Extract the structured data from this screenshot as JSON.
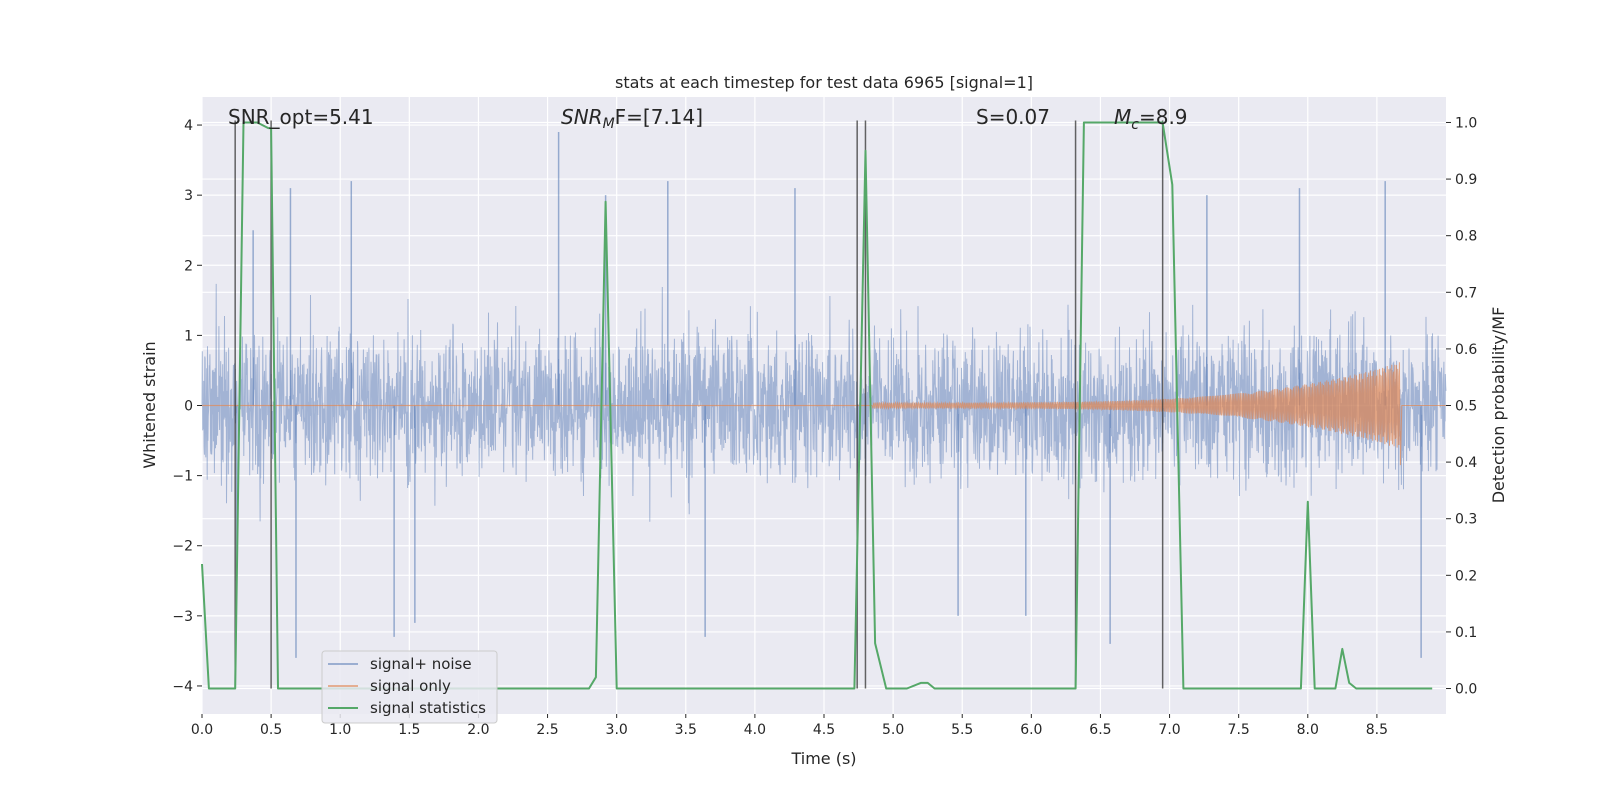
{
  "chart_data": {
    "type": "line",
    "title": "stats at each timestep for test data 6965 [signal=1]",
    "xlabel": "Time (s)",
    "ylabel_left": "Whitened strain",
    "ylabel_right": "Detection probability/MF",
    "xlim": [
      0.0,
      9.0
    ],
    "ylim_left": [
      -4.4,
      4.4
    ],
    "ylim_right": [
      -0.045,
      1.045
    ],
    "x_ticks": [
      0.0,
      0.5,
      1.0,
      1.5,
      2.0,
      2.5,
      3.0,
      3.5,
      4.0,
      4.5,
      5.0,
      5.5,
      6.0,
      6.5,
      7.0,
      7.5,
      8.0,
      8.5
    ],
    "x_tick_labels": [
      "0.0",
      "0.5",
      "1.0",
      "1.5",
      "2.0",
      "2.5",
      "3.0",
      "3.5",
      "4.0",
      "4.5",
      "5.0",
      "5.5",
      "6.0",
      "6.5",
      "7.0",
      "7.5",
      "8.0",
      "8.5"
    ],
    "y_left_ticks": [
      -4,
      -3,
      -2,
      -1,
      0,
      1,
      2,
      3,
      4
    ],
    "y_left_tick_labels": [
      "−4",
      "−3",
      "−2",
      "−1",
      "0",
      "1",
      "2",
      "3",
      "4"
    ],
    "y_right_ticks": [
      0.0,
      0.1,
      0.2,
      0.3,
      0.4,
      0.5,
      0.6,
      0.7,
      0.8,
      0.9,
      1.0
    ],
    "y_right_tick_labels": [
      "0.0",
      "0.1",
      "0.2",
      "0.3",
      "0.4",
      "0.5",
      "0.6",
      "0.7",
      "0.8",
      "0.9",
      "1.0"
    ],
    "grid": true,
    "legend_position": "lower-left",
    "annotations": [
      "SNR_opt=5.41",
      "SNR",
      "M",
      "F=[7.14]",
      "S=0.07",
      "M",
      "c",
      "=8.9"
    ],
    "vertical_lines": [
      0.24,
      0.5,
      4.74,
      4.8,
      6.32,
      6.95
    ],
    "series": [
      {
        "name": "signal+ noise",
        "axis": "left",
        "color": "#4c72b0",
        "style": "dense-noise",
        "x_range": [
          0.0,
          9.0
        ],
        "typical_envelope": [
          -1.6,
          1.6
        ],
        "extremes": [
          {
            "x": 0.25,
            "y": -2.5
          },
          {
            "x": 0.37,
            "y": 2.5
          },
          {
            "x": 0.64,
            "y": 3.1
          },
          {
            "x": 0.68,
            "y": -3.6
          },
          {
            "x": 1.08,
            "y": 3.2
          },
          {
            "x": 1.39,
            "y": -3.3
          },
          {
            "x": 1.54,
            "y": -3.1
          },
          {
            "x": 2.58,
            "y": 3.9
          },
          {
            "x": 2.92,
            "y": 3.0
          },
          {
            "x": 3.37,
            "y": 3.2
          },
          {
            "x": 3.64,
            "y": -3.3
          },
          {
            "x": 4.29,
            "y": 3.1
          },
          {
            "x": 5.47,
            "y": -3.0
          },
          {
            "x": 5.96,
            "y": -3.0
          },
          {
            "x": 6.57,
            "y": -3.4
          },
          {
            "x": 7.27,
            "y": 3.0
          },
          {
            "x": 7.94,
            "y": 3.1
          },
          {
            "x": 8.56,
            "y": 3.2
          },
          {
            "x": 8.82,
            "y": -3.6
          }
        ]
      },
      {
        "name": "signal only",
        "axis": "left",
        "color": "#dd8452",
        "style": "chirp",
        "x_start": 4.85,
        "x_end": 8.67,
        "amp_start": 0.04,
        "amp_end": 0.62
      },
      {
        "name": "signal statistics",
        "axis": "right",
        "color": "#55a868",
        "x": [
          0.0,
          0.05,
          0.1,
          0.2,
          0.24,
          0.3,
          0.4,
          0.48,
          0.5,
          0.55,
          0.6,
          0.7,
          0.8,
          1.0,
          1.5,
          2.0,
          2.5,
          2.8,
          2.85,
          2.92,
          3.0,
          3.1,
          3.5,
          4.0,
          4.5,
          4.68,
          4.72,
          4.8,
          4.87,
          4.95,
          5.1,
          5.2,
          5.25,
          5.3,
          5.5,
          6.0,
          6.3,
          6.32,
          6.38,
          6.9,
          6.95,
          7.02,
          7.1,
          7.5,
          7.9,
          7.95,
          8.0,
          8.05,
          8.1,
          8.2,
          8.25,
          8.3,
          8.35,
          8.4,
          8.5,
          8.9
        ],
        "y": [
          0.22,
          0.0,
          0.0,
          0.0,
          0.0,
          1.0,
          1.0,
          0.99,
          0.99,
          0.0,
          0.0,
          0.0,
          0.0,
          0.0,
          0.0,
          0.0,
          0.0,
          0.0,
          0.02,
          0.86,
          0.0,
          0.0,
          0.0,
          0.0,
          0.0,
          0.0,
          0.0,
          0.95,
          0.08,
          0.0,
          0.0,
          0.01,
          0.01,
          0.0,
          0.0,
          0.0,
          0.0,
          0.0,
          1.0,
          1.0,
          1.0,
          0.89,
          0.0,
          0.0,
          0.0,
          0.0,
          0.33,
          0.0,
          0.0,
          0.0,
          0.07,
          0.01,
          0.0,
          0.0,
          0.0,
          0.0
        ]
      }
    ]
  }
}
